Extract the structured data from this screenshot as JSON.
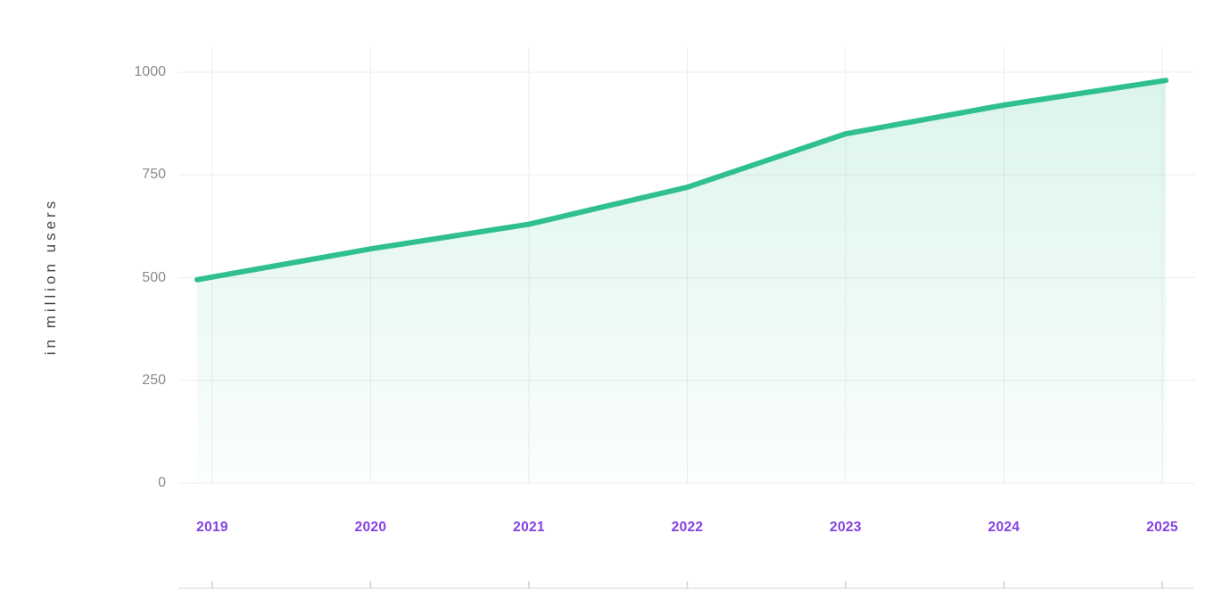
{
  "chart_data": {
    "type": "area",
    "title": "",
    "ylabel": "in million users",
    "xlabel": "",
    "categories": [
      "2019",
      "2020",
      "2021",
      "2022",
      "2023",
      "2024",
      "2025"
    ],
    "values": [
      495,
      570,
      630,
      720,
      850,
      920,
      980
    ],
    "y_ticks": [
      0,
      250,
      500,
      750,
      1000
    ],
    "ylim": [
      0,
      1000
    ],
    "grid": "on",
    "legend": "none",
    "colors": {
      "line": "#2fc08e",
      "fill_top": "rgba(47,192,142,0.17)",
      "fill_bottom": "rgba(47,192,142,0.02)",
      "x_label": "#8440e0",
      "y_tick_label": "#8a8a8a",
      "y_title": "#464646",
      "gridline": "#ededed",
      "axis_rail": "#e4e4e7",
      "axis_tick": "#cfd2d6"
    }
  }
}
